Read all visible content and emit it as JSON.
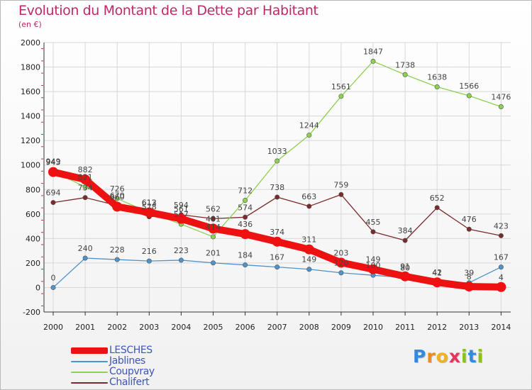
{
  "title": "Evolution du Montant de la Dette par Habitant",
  "subtitle": "(en €)",
  "logo": {
    "letters": [
      "P",
      "r",
      "o",
      "x",
      "i",
      "t",
      "i"
    ],
    "colors": [
      "#2f8be0",
      "#f08a1c",
      "#f2b21c",
      "#e8335a",
      "#8bc21c",
      "#2f8be0",
      "#8bc21c"
    ]
  },
  "chart_data": {
    "type": "line",
    "title": "Evolution du Montant de la Dette par Habitant",
    "ylabel": "(en €)",
    "xlabel": "",
    "ylim": [
      -200,
      2000
    ],
    "yticks": [
      "-200",
      "0",
      "200",
      "400",
      "600",
      "800",
      "1000",
      "1200",
      "1400",
      "1600",
      "1800",
      "2000"
    ],
    "categories": [
      "2000",
      "2001",
      "2002",
      "2003",
      "2004",
      "2005",
      "2006",
      "2007",
      "2008",
      "2009",
      "2010",
      "2011",
      "2012",
      "2013",
      "2014"
    ],
    "grid": true,
    "legend": "bottom-left",
    "series": [
      {
        "name": "Chalifert",
        "color": "#7a2a2a",
        "values": [
          694,
          734,
          670,
          578,
          594,
          562,
          574,
          738,
          663,
          759,
          455,
          384,
          652,
          476,
          423
        ]
      },
      {
        "name": "Coupvray",
        "color": "#8ed050",
        "values": [
          949,
          821,
          726,
          612,
          517,
          414,
          712,
          1033,
          1244,
          1561,
          1847,
          1738,
          1638,
          1566,
          1476
        ]
      },
      {
        "name": "Jablines",
        "color": "#4f93cc",
        "values": [
          0,
          240,
          228,
          216,
          223,
          201,
          184,
          167,
          149,
          120,
          100,
          80,
          41,
          39,
          167
        ]
      },
      {
        "name": "LESCHES",
        "color": "#ee1111",
        "values": [
          943,
          882,
          660,
          613,
          561,
          481,
          436,
          374,
          311,
          203,
          149,
          91,
          42,
          8,
          4
        ]
      }
    ]
  }
}
